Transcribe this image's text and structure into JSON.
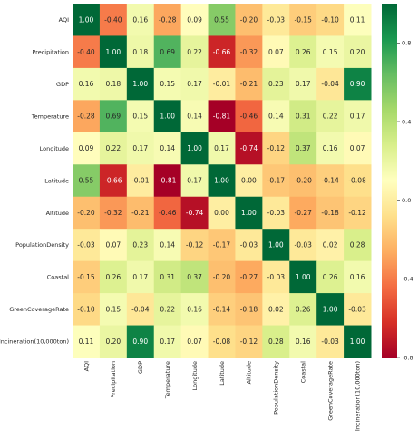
{
  "chart_data": {
    "type": "heatmap",
    "title": "",
    "xlabel": "",
    "ylabel": "",
    "labels": [
      "AQI",
      "Precipitation",
      "GDP",
      "Temperature",
      "Longitude",
      "Latitude",
      "Altitude",
      "PopulationDensity",
      "Coastal",
      "GreenCoverageRate",
      "Incineration(10,000ton)"
    ],
    "matrix": [
      [
        1.0,
        -0.4,
        0.16,
        -0.28,
        0.09,
        0.55,
        -0.2,
        -0.03,
        -0.15,
        -0.1,
        0.11
      ],
      [
        -0.4,
        1.0,
        0.18,
        0.69,
        0.22,
        -0.66,
        -0.32,
        0.07,
        0.26,
        0.15,
        0.2
      ],
      [
        0.16,
        0.18,
        1.0,
        0.15,
        0.17,
        -0.01,
        -0.21,
        0.23,
        0.17,
        -0.04,
        0.9
      ],
      [
        -0.28,
        0.69,
        0.15,
        1.0,
        0.14,
        -0.81,
        -0.46,
        0.14,
        0.31,
        0.22,
        0.17
      ],
      [
        0.09,
        0.22,
        0.17,
        0.14,
        1.0,
        0.17,
        -0.74,
        -0.12,
        0.37,
        0.16,
        0.07
      ],
      [
        0.55,
        -0.66,
        -0.01,
        -0.81,
        0.17,
        1.0,
        0.0,
        -0.17,
        -0.2,
        -0.14,
        -0.08
      ],
      [
        -0.2,
        -0.32,
        -0.21,
        -0.46,
        -0.74,
        0.0,
        1.0,
        -0.03,
        -0.27,
        -0.18,
        -0.12
      ],
      [
        -0.03,
        0.07,
        0.23,
        0.14,
        -0.12,
        -0.17,
        -0.03,
        1.0,
        -0.03,
        0.02,
        0.28
      ],
      [
        -0.15,
        0.26,
        0.17,
        0.31,
        0.37,
        -0.2,
        -0.27,
        -0.03,
        1.0,
        0.26,
        0.16
      ],
      [
        -0.1,
        0.15,
        -0.04,
        0.22,
        0.16,
        -0.14,
        -0.18,
        0.02,
        0.26,
        1.0,
        -0.03
      ],
      [
        0.11,
        0.2,
        0.9,
        0.17,
        0.07,
        -0.08,
        -0.12,
        0.28,
        0.16,
        -0.03,
        1.0
      ]
    ],
    "colorbar": {
      "range": [
        -0.8,
        1.0
      ],
      "ticks": [
        "0.8",
        "0.4",
        "0.0",
        "-0.4",
        "-0.8"
      ],
      "tick_values": [
        0.8,
        0.4,
        0.0,
        -0.4,
        -0.8
      ],
      "colormap": "RdYlGn",
      "colors": [
        "#a50026",
        "#d73027",
        "#f46d43",
        "#fdae61",
        "#fee08b",
        "#ffffbf",
        "#d9ef8b",
        "#a6d96a",
        "#66bd63",
        "#1a9850",
        "#006837"
      ]
    },
    "value_format": "2 decimals"
  }
}
